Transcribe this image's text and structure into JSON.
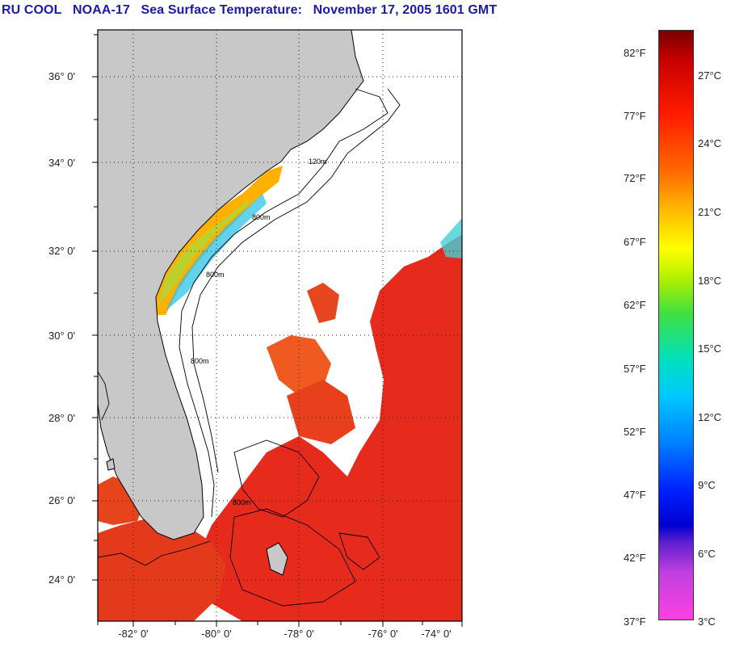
{
  "title": {
    "source": "RU COOL",
    "satellite": "NOAA-17",
    "product": "Sea Surface Temperature:",
    "datetime": "November 17, 2005 1601 GMT"
  },
  "map": {
    "lat_labels": [
      "36° 0'",
      "34° 0'",
      "32° 0'",
      "30° 0'",
      "28° 0'",
      "26° 0'",
      "24° 0'"
    ],
    "lon_labels": [
      "-82° 0'",
      "-80° 0'",
      "-78° 0'",
      "-76° 0'",
      "-74° 0'"
    ],
    "contour_labels": [
      "120m",
      "800m",
      "800m",
      "800m",
      "800m"
    ],
    "colors": {
      "land": "#c8c8c8",
      "cloud": "#ffffff",
      "warm_water": "#e8261a",
      "cool_water": "#ff8c00"
    }
  },
  "colorbar": {
    "fahrenheit_labels": [
      "82°F",
      "77°F",
      "72°F",
      "67°F",
      "62°F",
      "57°F",
      "52°F",
      "47°F",
      "42°F",
      "37°F"
    ],
    "celsius_labels": [
      "27°C",
      "24°C",
      "21°C",
      "18°C",
      "15°C",
      "12°C",
      "9°C",
      "6°C",
      "3°C"
    ]
  }
}
